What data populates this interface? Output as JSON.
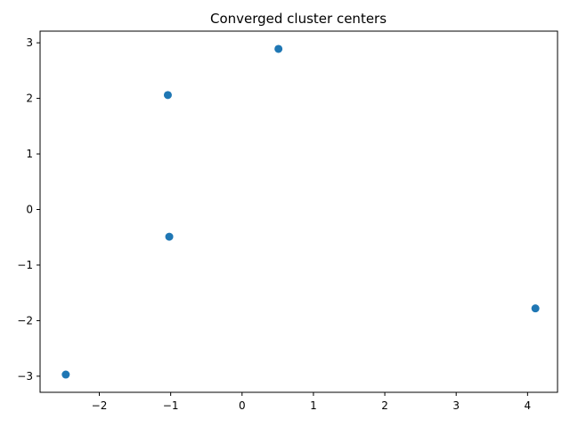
{
  "chart_data": {
    "type": "scatter",
    "title": "Converged cluster centers",
    "xlabel": "",
    "ylabel": "",
    "xlim": [
      -2.83,
      4.42
    ],
    "ylim": [
      -3.29,
      3.21
    ],
    "x_ticks": [
      -2,
      -1,
      0,
      1,
      2,
      3,
      4
    ],
    "y_ticks": [
      -3,
      -2,
      -1,
      0,
      1,
      2,
      3
    ],
    "grid": false,
    "legend": "none",
    "color": "#1f77b4",
    "series": [
      {
        "points": [
          {
            "x": 0.51,
            "y": 2.89
          },
          {
            "x": -1.04,
            "y": 2.06
          },
          {
            "x": -1.02,
            "y": -0.49
          },
          {
            "x": 4.11,
            "y": -1.78
          },
          {
            "x": -2.47,
            "y": -2.97
          }
        ]
      }
    ]
  }
}
